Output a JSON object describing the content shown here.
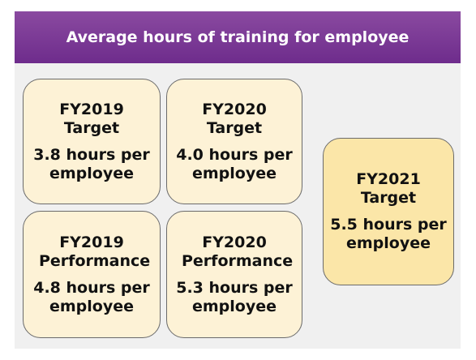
{
  "header": {
    "title": "Average hours of training for employee"
  },
  "boxes": [
    {
      "label": "FY2019 Target",
      "value": "3.8 hours per employee"
    },
    {
      "label": "FY2020 Target",
      "value": "4.0 hours per employee"
    },
    {
      "label": "FY2019 Performance",
      "value": "4.8 hours per employee"
    },
    {
      "label": "FY2020 Performance",
      "value": "5.3 hours per employee"
    },
    {
      "label": "FY2021 Target",
      "value": "5.5 hours per employee"
    }
  ]
}
